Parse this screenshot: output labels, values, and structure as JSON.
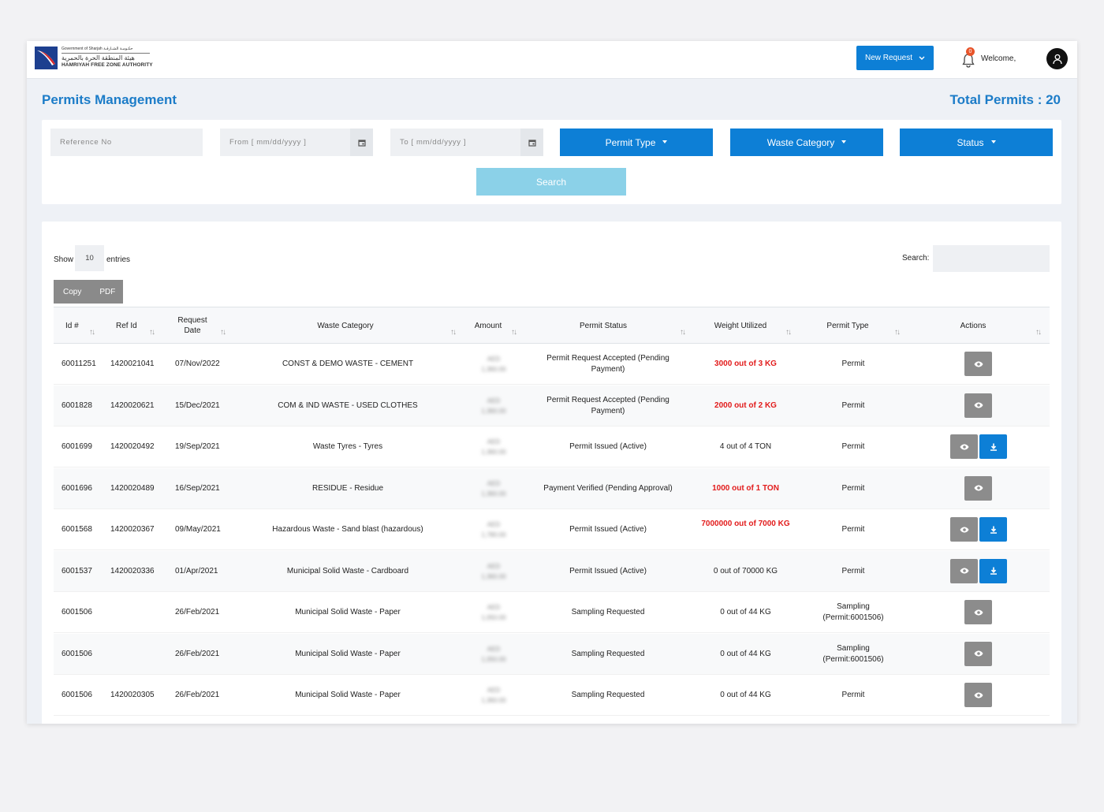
{
  "header": {
    "logo": {
      "line1": "Government of Sharjah حكـومـة الشـارقـة",
      "line2": "هيئة المنطقة الحرة بالحمرية",
      "line3": "HAMRIYAH FREE ZONE AUTHORITY"
    },
    "new_request_label": "New Request",
    "notification_count": "0",
    "welcome_text": "Welcome,"
  },
  "page": {
    "title": "Permits Management",
    "total_permits": "Total Permits : 20"
  },
  "filters": {
    "reference_placeholder": "Reference No",
    "from_placeholder": "From [ mm/dd/yyyy ]",
    "to_placeholder": "To [ mm/dd/yyyy ]",
    "permit_type_label": "Permit Type",
    "waste_category_label": "Waste Category",
    "status_label": "Status",
    "search_label": "Search"
  },
  "table_controls": {
    "show_label": "Show",
    "entries_value": "10",
    "entries_label": "entries",
    "search_label": "Search:",
    "copy_label": "Copy",
    "pdf_label": "PDF"
  },
  "table": {
    "columns": [
      "Id #",
      "Ref Id",
      "Request Date",
      "Waste Category",
      "Amount",
      "Permit Status",
      "Weight Utilized",
      "Permit Type",
      "Actions"
    ],
    "rows": [
      {
        "id": "60011251",
        "ref": "1420021041",
        "date": "07/Nov/2022",
        "category": "CONST & DEMO WASTE - CEMENT",
        "amount_currency": "AED",
        "amount_value": "1,360.00",
        "status": "Permit Request Accepted (Pending Payment)",
        "weight": "3000 out of 3 KG",
        "weight_exceeded": true,
        "type": "Permit",
        "download": false
      },
      {
        "id": "6001828",
        "ref": "1420020621",
        "date": "15/Dec/2021",
        "category": "COM & IND WASTE - USED CLOTHES",
        "amount_currency": "AED",
        "amount_value": "1,360.00",
        "status": "Permit Request Accepted (Pending Payment)",
        "weight": "2000 out of 2 KG",
        "weight_exceeded": true,
        "type": "Permit",
        "download": false
      },
      {
        "id": "6001699",
        "ref": "1420020492",
        "date": "19/Sep/2021",
        "category": "Waste Tyres - Tyres",
        "amount_currency": "AED",
        "amount_value": "1,360.00",
        "status": "Permit Issued (Active)",
        "weight": "4 out of 4 TON",
        "weight_exceeded": false,
        "type": "Permit",
        "download": true
      },
      {
        "id": "6001696",
        "ref": "1420020489",
        "date": "16/Sep/2021",
        "category": "RESIDUE - Residue",
        "amount_currency": "AED",
        "amount_value": "1,360.00",
        "status": "Payment Verified (Pending Approval)",
        "weight": "1000 out of 1 TON",
        "weight_exceeded": true,
        "type": "Permit",
        "download": false
      },
      {
        "id": "6001568",
        "ref": "1420020367",
        "date": "09/May/2021",
        "category": "Hazardous Waste - Sand blast (hazardous)",
        "amount_currency": "AED",
        "amount_value": "1,780.00",
        "status": "Permit Issued (Active)",
        "weight": "7000000 out of 7000 KG",
        "weight_exceeded": true,
        "type": "Permit",
        "download": true
      },
      {
        "id": "6001537",
        "ref": "1420020336",
        "date": "01/Apr/2021",
        "category": "Municipal Solid Waste - Cardboard",
        "amount_currency": "AED",
        "amount_value": "1,360.00",
        "status": "Permit Issued (Active)",
        "weight": "0 out of 70000 KG",
        "weight_exceeded": false,
        "type": "Permit",
        "download": true
      },
      {
        "id": "6001506",
        "ref": "",
        "date": "26/Feb/2021",
        "category": "Municipal Solid Waste - Paper",
        "amount_currency": "AED",
        "amount_value": "1,050.00",
        "status": "Sampling Requested",
        "weight": "0 out of 44 KG",
        "weight_exceeded": false,
        "type": "Sampling (Permit:6001506)",
        "download": false
      },
      {
        "id": "6001506",
        "ref": "",
        "date": "26/Feb/2021",
        "category": "Municipal Solid Waste - Paper",
        "amount_currency": "AED",
        "amount_value": "1,050.00",
        "status": "Sampling Requested",
        "weight": "0 out of 44 KG",
        "weight_exceeded": false,
        "type": "Sampling (Permit:6001506)",
        "download": false
      },
      {
        "id": "6001506",
        "ref": "1420020305",
        "date": "26/Feb/2021",
        "category": "Municipal Solid Waste - Paper",
        "amount_currency": "AED",
        "amount_value": "1,360.00",
        "status": "Sampling Requested",
        "weight": "0 out of 44 KG",
        "weight_exceeded": false,
        "type": "Permit",
        "download": false
      }
    ]
  },
  "colors": {
    "primary": "#0d7fd6",
    "title": "#1c7cc8",
    "search_disabled": "#8bd1e8",
    "exceeded": "#e21b1b",
    "view_button": "#8c8c8c"
  },
  "icons": {
    "bell": "bell-icon",
    "avatar": "user-icon",
    "calendar": "calendar-icon",
    "view": "eye-icon",
    "download": "download-icon",
    "sort": "sort-icon"
  }
}
